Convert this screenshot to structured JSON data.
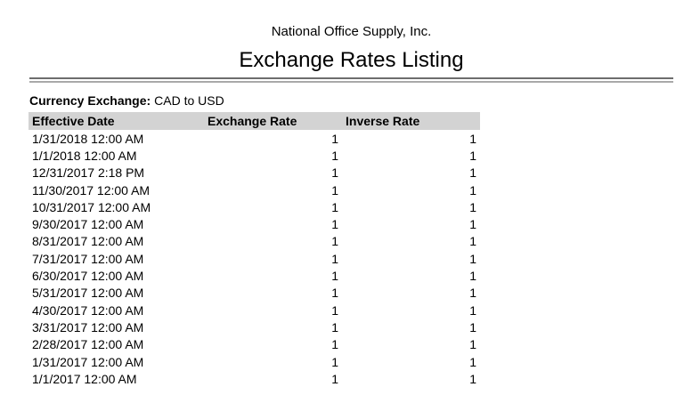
{
  "header": {
    "company": "National Office Supply, Inc.",
    "title": "Exchange Rates Listing"
  },
  "filter": {
    "label": "Currency Exchange:",
    "value": "CAD to USD"
  },
  "table": {
    "columns": [
      "Effective Date",
      "Exchange Rate",
      "Inverse Rate"
    ],
    "rows": [
      {
        "date": "1/31/2018 12:00 AM",
        "rate": "1",
        "inverse": "1"
      },
      {
        "date": "1/1/2018 12:00 AM",
        "rate": "1",
        "inverse": "1"
      },
      {
        "date": "12/31/2017 2:18 PM",
        "rate": "1",
        "inverse": "1"
      },
      {
        "date": "11/30/2017 12:00 AM",
        "rate": "1",
        "inverse": "1"
      },
      {
        "date": "10/31/2017 12:00 AM",
        "rate": "1",
        "inverse": "1"
      },
      {
        "date": "9/30/2017 12:00 AM",
        "rate": "1",
        "inverse": "1"
      },
      {
        "date": "8/31/2017 12:00 AM",
        "rate": "1",
        "inverse": "1"
      },
      {
        "date": "7/31/2017 12:00 AM",
        "rate": "1",
        "inverse": "1"
      },
      {
        "date": "6/30/2017 12:00 AM",
        "rate": "1",
        "inverse": "1"
      },
      {
        "date": "5/31/2017 12:00 AM",
        "rate": "1",
        "inverse": "1"
      },
      {
        "date": "4/30/2017 12:00 AM",
        "rate": "1",
        "inverse": "1"
      },
      {
        "date": "3/31/2017 12:00 AM",
        "rate": "1",
        "inverse": "1"
      },
      {
        "date": "2/28/2017 12:00 AM",
        "rate": "1",
        "inverse": "1"
      },
      {
        "date": "1/31/2017 12:00 AM",
        "rate": "1",
        "inverse": "1"
      },
      {
        "date": "1/1/2017 12:00 AM",
        "rate": "1",
        "inverse": "1"
      }
    ]
  },
  "colors": {
    "table_header_bg": "#d3d3d3",
    "rule_dark": "#6d6d6d",
    "rule_light": "#a9a9a9",
    "text": "#000000"
  }
}
